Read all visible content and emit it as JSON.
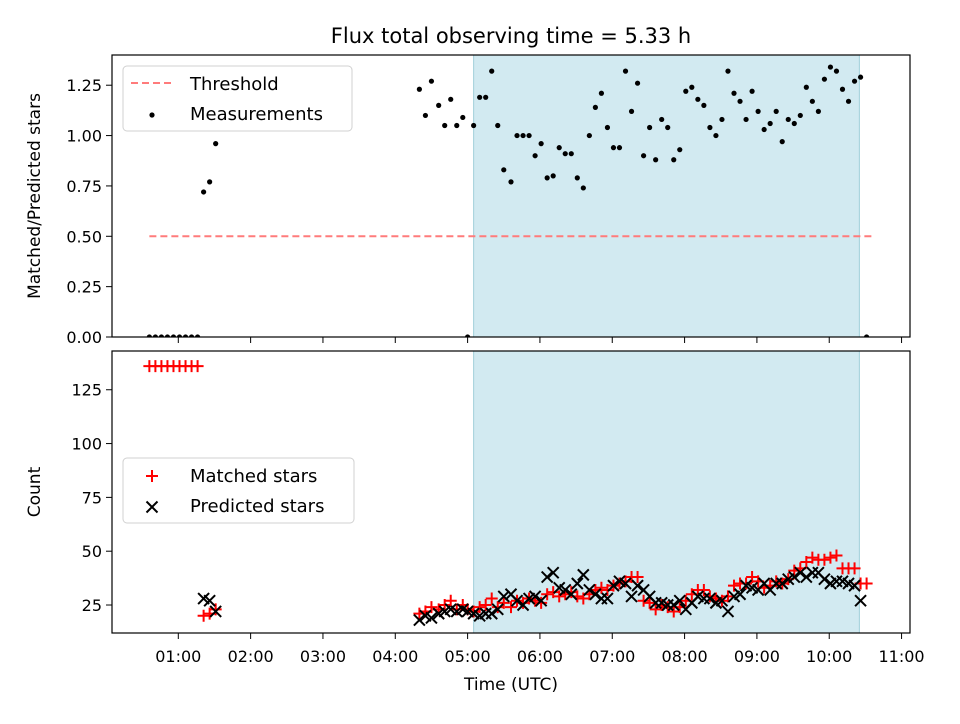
{
  "title": "Flux total observing time = 5.33 h",
  "colors": {
    "threshold": "#ff7b7b",
    "measurements": "#000000",
    "matched": "#ff0000",
    "predicted": "#000000",
    "observing_span": "#add8e6"
  },
  "chart_data": [
    {
      "type": "scatter",
      "panel": "top",
      "ylabel": "Matched/Predicted stars",
      "xlabel": "",
      "xlim": [
        "00:05",
        "11:07"
      ],
      "ylim": [
        0,
        1.4
      ],
      "yticks": [
        0.0,
        0.25,
        0.5,
        0.75,
        1.0,
        1.25
      ],
      "ytick_labels": [
        "0.00",
        "0.25",
        "0.50",
        "0.75",
        "1.00",
        "1.25"
      ],
      "legend_position": "top-left",
      "shaded_span": [
        "05:05",
        "10:25"
      ],
      "threshold": {
        "name": "Threshold",
        "value": 0.5,
        "x": [
          "00:36",
          "10:35"
        ]
      },
      "series": [
        {
          "name": "Measurements",
          "marker": "dot",
          "points": [
            [
              "00:36",
              0
            ],
            [
              "00:41",
              0
            ],
            [
              "00:46",
              0
            ],
            [
              "00:51",
              0
            ],
            [
              "00:56",
              0
            ],
            [
              "01:01",
              0
            ],
            [
              "01:06",
              0
            ],
            [
              "01:11",
              0
            ],
            [
              "01:16",
              0
            ],
            [
              "01:21",
              0.72
            ],
            [
              "01:26",
              0.77
            ],
            [
              "01:31",
              0.96
            ],
            [
              "04:20",
              1.23
            ],
            [
              "04:25",
              1.1
            ],
            [
              "04:30",
              1.27
            ],
            [
              "04:36",
              1.15
            ],
            [
              "04:41",
              1.05
            ],
            [
              "04:46",
              1.18
            ],
            [
              "04:51",
              1.05
            ],
            [
              "04:56",
              1.09
            ],
            [
              "05:00",
              0
            ],
            [
              "05:05",
              1.05
            ],
            [
              "05:10",
              1.19
            ],
            [
              "05:15",
              1.19
            ],
            [
              "05:20",
              1.32
            ],
            [
              "05:25",
              1.05
            ],
            [
              "05:30",
              0.83
            ],
            [
              "05:36",
              0.77
            ],
            [
              "05:41",
              1.0
            ],
            [
              "05:46",
              1.0
            ],
            [
              "05:51",
              1.0
            ],
            [
              "05:56",
              0.9
            ],
            [
              "06:01",
              0.96
            ],
            [
              "06:06",
              0.79
            ],
            [
              "06:11",
              0.8
            ],
            [
              "06:16",
              0.94
            ],
            [
              "06:21",
              0.91
            ],
            [
              "06:26",
              0.91
            ],
            [
              "06:31",
              0.79
            ],
            [
              "06:36",
              0.74
            ],
            [
              "06:41",
              1.0
            ],
            [
              "06:46",
              1.14
            ],
            [
              "06:51",
              1.21
            ],
            [
              "06:56",
              1.04
            ],
            [
              "07:01",
              0.94
            ],
            [
              "07:06",
              0.94
            ],
            [
              "07:11",
              1.32
            ],
            [
              "07:16",
              1.12
            ],
            [
              "07:21",
              1.26
            ],
            [
              "07:26",
              0.9
            ],
            [
              "07:31",
              1.04
            ],
            [
              "07:36",
              0.88
            ],
            [
              "07:41",
              1.08
            ],
            [
              "07:46",
              1.04
            ],
            [
              "07:51",
              0.88
            ],
            [
              "07:56",
              0.93
            ],
            [
              "08:01",
              1.22
            ],
            [
              "08:06",
              1.24
            ],
            [
              "08:11",
              1.18
            ],
            [
              "08:16",
              1.15
            ],
            [
              "08:21",
              1.04
            ],
            [
              "08:26",
              1.0
            ],
            [
              "08:31",
              1.08
            ],
            [
              "08:36",
              1.32
            ],
            [
              "08:41",
              1.21
            ],
            [
              "08:46",
              1.17
            ],
            [
              "08:51",
              1.08
            ],
            [
              "08:56",
              1.22
            ],
            [
              "09:01",
              1.12
            ],
            [
              "09:06",
              1.03
            ],
            [
              "09:11",
              1.06
            ],
            [
              "09:16",
              1.12
            ],
            [
              "09:21",
              0.97
            ],
            [
              "09:26",
              1.08
            ],
            [
              "09:31",
              1.06
            ],
            [
              "09:36",
              1.1
            ],
            [
              "09:41",
              1.24
            ],
            [
              "09:46",
              1.17
            ],
            [
              "09:51",
              1.12
            ],
            [
              "09:56",
              1.28
            ],
            [
              "10:01",
              1.34
            ],
            [
              "10:06",
              1.32
            ],
            [
              "10:11",
              1.23
            ],
            [
              "10:16",
              1.17
            ],
            [
              "10:21",
              1.27
            ],
            [
              "10:26",
              1.29
            ],
            [
              "10:31",
              0
            ]
          ]
        }
      ]
    },
    {
      "type": "scatter",
      "panel": "bottom",
      "ylabel": "Count",
      "xlabel": "Time (UTC)",
      "xlim": [
        "00:05",
        "11:07"
      ],
      "ylim": [
        12,
        143
      ],
      "yticks": [
        25,
        50,
        75,
        100,
        125
      ],
      "ytick_labels": [
        "25",
        "50",
        "75",
        "100",
        "125"
      ],
      "xticks": [
        "01:00",
        "02:00",
        "03:00",
        "04:00",
        "05:00",
        "06:00",
        "07:00",
        "08:00",
        "09:00",
        "10:00",
        "11:00"
      ],
      "legend_position": "center-left",
      "shaded_span": [
        "05:05",
        "10:25"
      ],
      "series": [
        {
          "name": "Matched stars",
          "marker": "plus",
          "points": [
            [
              "00:36",
              136
            ],
            [
              "00:41",
              136
            ],
            [
              "00:46",
              136
            ],
            [
              "00:51",
              136
            ],
            [
              "00:56",
              136
            ],
            [
              "01:01",
              136
            ],
            [
              "01:06",
              136
            ],
            [
              "01:11",
              136
            ],
            [
              "01:16",
              136
            ],
            [
              "01:21",
              20
            ],
            [
              "01:26",
              21
            ],
            [
              "01:31",
              23
            ],
            [
              "04:20",
              21
            ],
            [
              "04:25",
              22
            ],
            [
              "04:30",
              24
            ],
            [
              "04:36",
              23
            ],
            [
              "04:41",
              25
            ],
            [
              "04:46",
              27
            ],
            [
              "04:51",
              23
            ],
            [
              "04:56",
              25
            ],
            [
              "05:00",
              23
            ],
            [
              "05:05",
              22
            ],
            [
              "05:10",
              24
            ],
            [
              "05:15",
              25
            ],
            [
              "05:20",
              28
            ],
            [
              "05:25",
              24
            ],
            [
              "05:30",
              26
            ],
            [
              "05:36",
              24
            ],
            [
              "05:41",
              27
            ],
            [
              "05:46",
              26
            ],
            [
              "05:51",
              28
            ],
            [
              "05:56",
              27
            ],
            [
              "06:01",
              26
            ],
            [
              "06:06",
              30
            ],
            [
              "06:11",
              31
            ],
            [
              "06:16",
              29
            ],
            [
              "06:21",
              30
            ],
            [
              "06:26",
              31
            ],
            [
              "06:31",
              29
            ],
            [
              "06:36",
              28
            ],
            [
              "06:41",
              30
            ],
            [
              "06:46",
              32
            ],
            [
              "06:51",
              33
            ],
            [
              "06:56",
              32
            ],
            [
              "07:01",
              34
            ],
            [
              "07:06",
              35
            ],
            [
              "07:11",
              36
            ],
            [
              "07:16",
              38
            ],
            [
              "07:21",
              38
            ],
            [
              "07:26",
              27
            ],
            [
              "07:31",
              26
            ],
            [
              "07:36",
              23
            ],
            [
              "07:41",
              25
            ],
            [
              "07:46",
              24
            ],
            [
              "07:51",
              22
            ],
            [
              "07:56",
              24
            ],
            [
              "08:01",
              27
            ],
            [
              "08:06",
              30
            ],
            [
              "08:11",
              32
            ],
            [
              "08:16",
              32
            ],
            [
              "08:21",
              29
            ],
            [
              "08:26",
              28
            ],
            [
              "08:31",
              27
            ],
            [
              "08:36",
              29
            ],
            [
              "08:41",
              34
            ],
            [
              "08:46",
              35
            ],
            [
              "08:51",
              35
            ],
            [
              "08:56",
              38
            ],
            [
              "09:01",
              36
            ],
            [
              "09:06",
              33
            ],
            [
              "09:11",
              34
            ],
            [
              "09:16",
              36
            ],
            [
              "09:21",
              35
            ],
            [
              "09:26",
              37
            ],
            [
              "09:31",
              41
            ],
            [
              "09:36",
              42
            ],
            [
              "09:41",
              45
            ],
            [
              "09:46",
              47
            ],
            [
              "09:51",
              46
            ],
            [
              "09:56",
              46
            ],
            [
              "10:01",
              47
            ],
            [
              "10:06",
              48
            ],
            [
              "10:11",
              42
            ],
            [
              "10:16",
              42
            ],
            [
              "10:21",
              42
            ],
            [
              "10:26",
              35
            ],
            [
              "10:31",
              35
            ]
          ]
        },
        {
          "name": "Predicted stars",
          "marker": "x",
          "points": [
            [
              "01:21",
              28
            ],
            [
              "01:26",
              27
            ],
            [
              "01:31",
              22
            ],
            [
              "04:20",
              18
            ],
            [
              "04:25",
              20
            ],
            [
              "04:30",
              19
            ],
            [
              "04:36",
              21
            ],
            [
              "04:41",
              22
            ],
            [
              "04:46",
              23
            ],
            [
              "04:51",
              22
            ],
            [
              "04:56",
              23
            ],
            [
              "05:00",
              22
            ],
            [
              "05:05",
              21
            ],
            [
              "05:10",
              20
            ],
            [
              "05:15",
              21
            ],
            [
              "05:20",
              21
            ],
            [
              "05:25",
              23
            ],
            [
              "05:30",
              29
            ],
            [
              "05:36",
              30
            ],
            [
              "05:41",
              27
            ],
            [
              "05:46",
              25
            ],
            [
              "05:51",
              28
            ],
            [
              "05:56",
              29
            ],
            [
              "06:01",
              27
            ],
            [
              "06:06",
              38
            ],
            [
              "06:11",
              40
            ],
            [
              "06:16",
              33
            ],
            [
              "06:21",
              32
            ],
            [
              "06:26",
              30
            ],
            [
              "06:31",
              35
            ],
            [
              "06:36",
              39
            ],
            [
              "06:41",
              32
            ],
            [
              "06:46",
              30
            ],
            [
              "06:51",
              28
            ],
            [
              "06:56",
              28
            ],
            [
              "07:01",
              34
            ],
            [
              "07:06",
              36
            ],
            [
              "07:11",
              35
            ],
            [
              "07:16",
              29
            ],
            [
              "07:21",
              34
            ],
            [
              "07:26",
              32
            ],
            [
              "07:31",
              29
            ],
            [
              "07:36",
              26
            ],
            [
              "07:41",
              26
            ],
            [
              "07:46",
              25
            ],
            [
              "07:51",
              25
            ],
            [
              "07:56",
              27
            ],
            [
              "08:01",
              23
            ],
            [
              "08:06",
              26
            ],
            [
              "08:11",
              29
            ],
            [
              "08:16",
              28
            ],
            [
              "08:21",
              28
            ],
            [
              "08:26",
              26
            ],
            [
              "08:31",
              27
            ],
            [
              "08:36",
              22
            ],
            [
              "08:41",
              29
            ],
            [
              "08:46",
              30
            ],
            [
              "08:51",
              34
            ],
            [
              "08:56",
              33
            ],
            [
              "09:01",
              32
            ],
            [
              "09:06",
              35
            ],
            [
              "09:11",
              32
            ],
            [
              "09:16",
              35
            ],
            [
              "09:21",
              35
            ],
            [
              "09:26",
              37
            ],
            [
              "09:31",
              38
            ],
            [
              "09:36",
              40
            ],
            [
              "09:41",
              38
            ],
            [
              "09:46",
              40
            ],
            [
              "09:51",
              40
            ],
            [
              "09:56",
              37
            ],
            [
              "10:01",
              35
            ],
            [
              "10:06",
              36
            ],
            [
              "10:11",
              36
            ],
            [
              "10:16",
              35
            ],
            [
              "10:21",
              34
            ],
            [
              "10:26",
              27
            ]
          ]
        }
      ]
    }
  ]
}
